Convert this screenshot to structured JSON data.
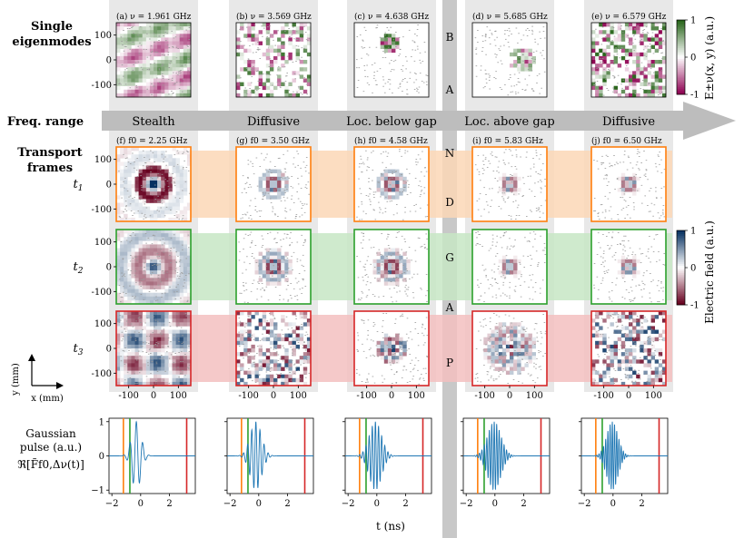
{
  "chart_data": {
    "type": "figure",
    "row_labels": {
      "single_eigenmodes": "Single eigenmodes",
      "freq_range": "Freq. range",
      "transport_frames": "Transport frames",
      "times": [
        "t1",
        "t2",
        "t3"
      ],
      "pulse_label_1": "Gaussian",
      "pulse_label_2": "pulse (a.u.)",
      "pulse_label_3": "ℜ[F̃f0,Δν(t)]",
      "axes_y": "y (mm)",
      "axes_x": "x (mm)"
    },
    "band_gap_letters": [
      "B",
      "A",
      "N",
      "D",
      "G",
      "A",
      "P"
    ],
    "regimes": [
      "Stealth",
      "Diffusive",
      "Loc. below gap",
      "Loc. above gap",
      "Diffusive"
    ],
    "eigenmodes": [
      {
        "label": "(a) ν = 1.961 GHz",
        "pattern": "stripes"
      },
      {
        "label": "(b) ν = 3.569 GHz",
        "pattern": "diffusive"
      },
      {
        "label": "(c) ν = 4.638 GHz",
        "pattern": "localized"
      },
      {
        "label": "(d) ν = 5.685 GHz",
        "pattern": "localized-shift"
      },
      {
        "label": "(e) ν = 6.579 GHz",
        "pattern": "diffusive"
      }
    ],
    "transport": [
      {
        "label": "(f) f0 = 2.25 GHz"
      },
      {
        "label": "(g) f0 = 3.50 GHz"
      },
      {
        "label": "(h) f0 = 4.58 GHz"
      },
      {
        "label": "(i) f0 = 5.83 GHz"
      },
      {
        "label": "(j) f0 = 6.50 GHz"
      }
    ],
    "map_axis": {
      "ticks": [
        -100,
        0,
        100
      ],
      "range": [
        -150,
        150
      ],
      "unit": "mm"
    },
    "colorbar_top": {
      "label": "E±ν(x, y) (a.u.)",
      "ticks": [
        -1,
        0,
        1
      ],
      "colors": [
        "#8e0152",
        "#ffffff",
        "#276419"
      ]
    },
    "colorbar_mid": {
      "label": "Electric field (a.u.)",
      "ticks": [
        -1,
        0,
        1
      ],
      "colors": [
        "#67001f",
        "#ffffff",
        "#053061"
      ]
    },
    "pulse": {
      "xlabel": "t (ns)",
      "xticks": [
        -2,
        0,
        2
      ],
      "yticks": [
        -1,
        0,
        1
      ],
      "xlim": [
        -2.2,
        3.8
      ],
      "ylim": [
        -1.1,
        1.1
      ],
      "centers": [
        -0.3,
        -0.2,
        -0.1,
        -0.05,
        -0.05
      ],
      "widths": [
        0.45,
        0.55,
        0.6,
        0.65,
        0.55
      ],
      "frequencies": [
        2.25,
        3.5,
        4.58,
        5.83,
        6.5
      ],
      "marker_times": {
        "t1": -1.2,
        "t2": -0.75,
        "t3": 3.2
      },
      "marker_colors": {
        "t1": "#ff7f0e",
        "t2": "#2ca02c",
        "t3": "#d62728"
      },
      "line_color": "#1f77b4"
    },
    "time_colors": {
      "t1": "#ff7f0e",
      "t2": "#2ca02c",
      "t3": "#d62728"
    },
    "band_colors": {
      "t1": "#fbd7b6",
      "t2": "#c7e6c4",
      "t3": "#f3bfbf"
    }
  }
}
